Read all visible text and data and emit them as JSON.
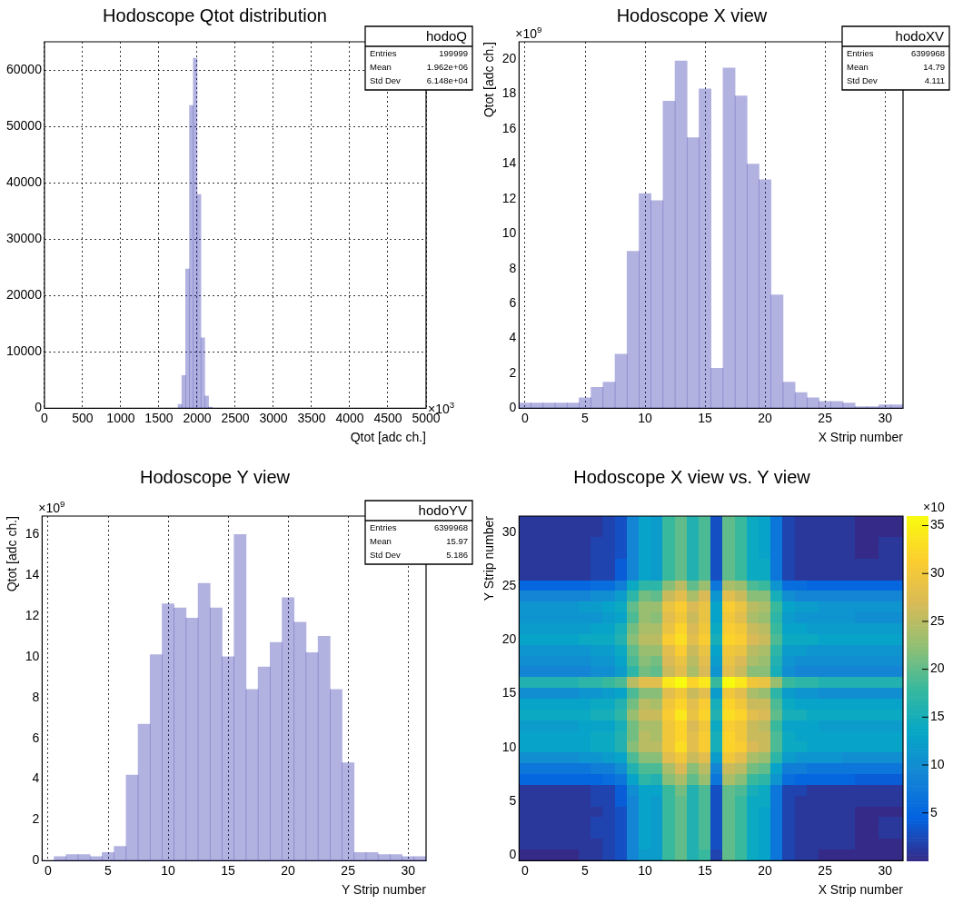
{
  "chart_data": [
    {
      "type": "histogram",
      "title": "Hodoscope Qtot distribution",
      "xlabel": "Qtot [adc ch.]",
      "bins": [
        1750,
        1800,
        1850,
        1900,
        1950,
        2000,
        2050,
        2100,
        2150,
        2200
      ],
      "values": [
        700,
        5800,
        24700,
        53700,
        62100,
        37900,
        12500,
        2200,
        200
      ],
      "color": "#000099",
      "xlim": [
        0,
        5000
      ],
      "xticks": [
        0,
        500,
        1000,
        1500,
        2000,
        2500,
        3000,
        3500,
        4000,
        4500,
        5000
      ],
      "ylim": [
        0,
        65000
      ],
      "yticks": [
        0,
        10000,
        20000,
        30000,
        40000,
        50000,
        60000
      ],
      "grid": true,
      "annotations": [
        "×10$^{3}$",
        "hodoQ",
        "Entries",
        "199999",
        "Mean",
        "1.962e+06",
        "Std Dev",
        "6.148e+04"
      ]
    },
    {
      "type": "histogram",
      "title": "Hodoscope X view",
      "xlabel": "X Strip number",
      "ylabel": "Qtot [adc ch.]",
      "bins": [
        -0.5,
        0.5,
        1.5,
        2.5,
        3.5,
        4.5,
        5.5,
        6.5,
        7.5,
        8.5,
        9.5,
        10.5,
        11.5,
        12.5,
        13.5,
        14.5,
        15.5,
        16.5,
        17.5,
        18.5,
        19.5,
        20.5,
        21.5,
        22.5,
        23.5,
        24.5,
        25.5,
        26.5,
        27.5,
        28.5,
        29.5,
        30.5,
        31.5
      ],
      "values": [
        0.3,
        0.3,
        0.3,
        0.3,
        0.3,
        0.6,
        1.2,
        1.5,
        3.1,
        9.0,
        12.3,
        11.9,
        17.6,
        19.9,
        15.5,
        18.3,
        2.3,
        19.5,
        17.9,
        14.0,
        13.1,
        6.5,
        1.5,
        0.9,
        0.6,
        0.4,
        0.4,
        0.3,
        0.1,
        0.1,
        0.2,
        0.2
      ],
      "color": "#000099",
      "xlim": [
        -0.5,
        31.5
      ],
      "xticks": [
        0,
        5,
        10,
        15,
        20,
        25,
        30
      ],
      "ylim": [
        0,
        21
      ],
      "yticks": [
        0,
        2,
        4,
        6,
        8,
        10,
        12,
        14,
        16,
        18,
        20
      ],
      "grid": "x",
      "annotations": [
        "×10$^{9}$",
        "hodoXV",
        "Entries",
        "6399968",
        "Mean",
        "14.79",
        "Std Dev",
        "4.111"
      ]
    },
    {
      "type": "histogram",
      "title": "Hodoscope Y view",
      "xlabel": "Y Strip number",
      "ylabel": "Qtot [adc ch.]",
      "bins": [
        -0.5,
        0.5,
        1.5,
        2.5,
        3.5,
        4.5,
        5.5,
        6.5,
        7.5,
        8.5,
        9.5,
        10.5,
        11.5,
        12.5,
        13.5,
        14.5,
        15.5,
        16.5,
        17.5,
        18.5,
        19.5,
        20.5,
        21.5,
        22.5,
        23.5,
        24.5,
        25.5,
        26.5,
        27.5,
        28.5,
        29.5,
        30.5,
        31.5
      ],
      "values": [
        0.0,
        0.2,
        0.3,
        0.3,
        0.2,
        0.4,
        0.7,
        4.2,
        6.7,
        10.1,
        12.6,
        12.4,
        11.9,
        13.6,
        12.4,
        10.0,
        16.0,
        8.4,
        9.5,
        10.7,
        12.9,
        11.7,
        10.2,
        11.0,
        8.4,
        4.8,
        0.4,
        0.4,
        0.3,
        0.3,
        0.2,
        0.2
      ],
      "color": "#000099",
      "xlim": [
        -0.5,
        31.5
      ],
      "xticks": [
        0,
        5,
        10,
        15,
        20,
        25,
        30
      ],
      "ylim": [
        0,
        16.9
      ],
      "yticks": [
        0,
        2,
        4,
        6,
        8,
        10,
        12,
        14,
        16
      ],
      "grid": "x",
      "annotations": [
        "×10$^{9}$",
        "hodoYV",
        "Entries",
        "6399968",
        "Mean",
        "15.97",
        "Std Dev",
        "5.186"
      ]
    },
    {
      "type": "heatmap",
      "title": "Hodoscope X view vs. Y view",
      "xlabel": "X Strip number",
      "ylabel": "Y Strip number",
      "categories": [
        "0",
        null,
        null,
        null,
        null,
        "5",
        null,
        null,
        null,
        null,
        "10",
        null,
        null,
        null,
        null,
        "15",
        null,
        null,
        null,
        null,
        "20",
        null,
        null,
        null,
        null,
        "25",
        null,
        null,
        null,
        null,
        "30",
        null
      ],
      "y_categories": [
        null,
        "30",
        null,
        null,
        null,
        null,
        "25",
        null,
        null,
        null,
        null,
        "20",
        null,
        null,
        null,
        null,
        "15",
        null,
        null,
        null,
        null,
        "10",
        null,
        null,
        null,
        null,
        "5",
        null,
        null,
        null,
        null,
        "0"
      ],
      "clim": [
        0,
        36
      ],
      "cticks": [
        5,
        10,
        15,
        20,
        25,
        30,
        35
      ],
      "cells": [
        [
          1,
          1,
          1,
          1,
          1,
          1,
          1,
          2,
          3,
          9,
          13,
          12,
          18,
          20,
          16,
          19,
          3,
          20,
          18,
          14,
          13,
          7,
          2,
          1,
          1,
          1,
          1,
          1,
          0,
          0,
          0,
          0
        ],
        [
          1,
          1,
          1,
          1,
          1,
          1,
          1,
          2,
          3,
          9,
          13,
          12,
          18,
          20,
          16,
          19,
          3,
          20,
          18,
          14,
          13,
          7,
          2,
          1,
          1,
          1,
          1,
          1,
          0,
          0,
          0,
          0
        ],
        [
          1,
          1,
          1,
          1,
          1,
          1,
          2,
          2,
          3,
          9,
          13,
          12,
          18,
          20,
          16,
          19,
          3,
          20,
          18,
          14,
          13,
          7,
          2,
          1,
          1,
          1,
          1,
          1,
          0,
          0,
          1,
          1
        ],
        [
          1,
          1,
          1,
          1,
          1,
          1,
          2,
          2,
          3,
          9,
          13,
          12,
          18,
          20,
          16,
          19,
          3,
          20,
          18,
          14,
          13,
          7,
          2,
          1,
          1,
          1,
          1,
          1,
          0,
          0,
          1,
          1
        ],
        [
          1,
          1,
          1,
          1,
          1,
          1,
          2,
          2,
          4,
          9,
          13,
          12,
          18,
          20,
          16,
          19,
          3,
          20,
          18,
          14,
          14,
          7,
          2,
          1,
          1,
          1,
          1,
          1,
          1,
          1,
          1,
          1
        ],
        [
          1,
          1,
          1,
          1,
          1,
          1,
          2,
          2,
          4,
          9,
          13,
          12,
          18,
          20,
          16,
          19,
          3,
          20,
          18,
          14,
          14,
          7,
          2,
          1,
          1,
          1,
          1,
          1,
          1,
          1,
          1,
          1
        ],
        [
          5,
          5,
          5,
          5,
          5,
          5,
          6,
          6,
          8,
          14,
          17,
          17,
          22,
          25,
          20,
          23,
          7,
          24,
          23,
          19,
          18,
          11,
          6,
          6,
          5,
          5,
          5,
          5,
          5,
          5,
          5,
          5
        ],
        [
          9,
          9,
          9,
          9,
          9,
          9,
          10,
          10,
          12,
          17,
          21,
          20,
          26,
          28,
          24,
          27,
          11,
          28,
          26,
          22,
          22,
          15,
          10,
          9,
          9,
          9,
          9,
          9,
          9,
          9,
          9,
          9
        ],
        [
          11,
          11,
          11,
          11,
          11,
          12,
          12,
          13,
          14,
          20,
          23,
          23,
          29,
          31,
          27,
          29,
          13,
          31,
          29,
          25,
          24,
          18,
          13,
          12,
          12,
          11,
          11,
          11,
          11,
          11,
          11,
          11
        ],
        [
          11,
          11,
          11,
          11,
          11,
          11,
          11,
          12,
          13,
          19,
          23,
          22,
          28,
          30,
          26,
          29,
          13,
          30,
          28,
          24,
          23,
          17,
          12,
          11,
          11,
          11,
          11,
          11,
          10,
          10,
          10,
          10
        ],
        [
          12,
          12,
          12,
          12,
          12,
          12,
          13,
          13,
          15,
          21,
          24,
          24,
          29,
          32,
          27,
          30,
          14,
          31,
          30,
          26,
          25,
          18,
          13,
          13,
          12,
          12,
          12,
          12,
          12,
          12,
          12,
          12
        ],
        [
          13,
          13,
          13,
          13,
          13,
          14,
          14,
          14,
          16,
          22,
          25,
          25,
          31,
          33,
          28,
          31,
          15,
          32,
          31,
          27,
          26,
          19,
          14,
          14,
          14,
          13,
          13,
          13,
          13,
          13,
          13,
          13
        ],
        [
          11,
          11,
          11,
          11,
          11,
          11,
          12,
          12,
          14,
          20,
          23,
          23,
          28,
          31,
          26,
          29,
          13,
          30,
          29,
          25,
          24,
          17,
          12,
          12,
          11,
          11,
          11,
          11,
          11,
          11,
          11,
          11
        ],
        [
          10,
          10,
          10,
          10,
          10,
          10,
          11,
          11,
          13,
          19,
          22,
          21,
          27,
          29,
          25,
          28,
          12,
          29,
          27,
          24,
          23,
          16,
          11,
          10,
          10,
          10,
          10,
          10,
          10,
          10,
          10,
          10
        ],
        [
          9,
          9,
          9,
          9,
          9,
          9,
          10,
          10,
          12,
          17,
          21,
          20,
          26,
          28,
          24,
          27,
          11,
          28,
          26,
          22,
          22,
          15,
          10,
          9,
          9,
          9,
          9,
          9,
          9,
          9,
          9,
          9
        ],
        [
          16,
          16,
          16,
          16,
          16,
          17,
          17,
          18,
          19,
          25,
          28,
          28,
          34,
          36,
          32,
          34,
          18,
          36,
          34,
          30,
          29,
          23,
          18,
          17,
          17,
          16,
          16,
          16,
          16,
          16,
          16,
          16
        ],
        [
          10,
          10,
          10,
          10,
          10,
          11,
          11,
          12,
          13,
          19,
          22,
          22,
          28,
          30,
          26,
          28,
          12,
          30,
          28,
          24,
          23,
          17,
          12,
          11,
          11,
          10,
          10,
          10,
          10,
          10,
          10,
          10
        ],
        [
          13,
          13,
          13,
          13,
          13,
          13,
          14,
          14,
          16,
          21,
          25,
          24,
          30,
          32,
          28,
          31,
          15,
          32,
          30,
          26,
          26,
          19,
          14,
          13,
          13,
          13,
          13,
          13,
          13,
          13,
          13,
          13
        ],
        [
          14,
          14,
          14,
          14,
          14,
          14,
          15,
          15,
          17,
          23,
          26,
          26,
          31,
          34,
          29,
          32,
          16,
          33,
          32,
          28,
          27,
          20,
          15,
          15,
          14,
          14,
          14,
          14,
          14,
          14,
          14,
          14
        ],
        [
          12,
          12,
          12,
          12,
          12,
          13,
          13,
          13,
          15,
          21,
          24,
          24,
          30,
          32,
          27,
          30,
          14,
          31,
          30,
          26,
          25,
          18,
          13,
          13,
          13,
          12,
          12,
          12,
          12,
          12,
          12,
          12
        ],
        [
          13,
          13,
          13,
          13,
          13,
          13,
          14,
          14,
          16,
          21,
          25,
          24,
          30,
          32,
          28,
          31,
          15,
          32,
          30,
          26,
          26,
          19,
          14,
          13,
          13,
          13,
          13,
          13,
          13,
          13,
          13,
          13
        ],
        [
          13,
          13,
          13,
          13,
          13,
          13,
          14,
          14,
          16,
          22,
          25,
          25,
          30,
          33,
          28,
          31,
          15,
          32,
          31,
          27,
          26,
          19,
          14,
          14,
          13,
          13,
          13,
          13,
          13,
          13,
          13,
          13
        ],
        [
          10,
          10,
          10,
          10,
          10,
          11,
          11,
          12,
          13,
          19,
          22,
          22,
          28,
          30,
          26,
          28,
          12,
          30,
          28,
          24,
          23,
          17,
          12,
          11,
          11,
          11,
          11,
          10,
          10,
          10,
          10,
          10
        ],
        [
          7,
          7,
          7,
          7,
          7,
          7,
          8,
          8,
          10,
          16,
          19,
          19,
          24,
          27,
          22,
          25,
          9,
          26,
          25,
          21,
          20,
          13,
          8,
          8,
          7,
          7,
          7,
          7,
          7,
          7,
          7,
          7
        ],
        [
          5,
          5,
          5,
          5,
          5,
          5,
          5,
          6,
          7,
          13,
          17,
          16,
          22,
          24,
          20,
          23,
          7,
          24,
          22,
          18,
          17,
          11,
          6,
          5,
          5,
          5,
          5,
          5,
          4,
          4,
          4,
          4
        ],
        [
          1,
          1,
          1,
          1,
          1,
          1,
          2,
          2,
          4,
          10,
          13,
          13,
          18,
          21,
          16,
          19,
          3,
          20,
          19,
          15,
          14,
          7,
          2,
          2,
          1,
          1,
          1,
          1,
          1,
          1,
          1,
          1
        ],
        [
          1,
          1,
          1,
          1,
          1,
          1,
          2,
          2,
          4,
          9,
          13,
          12,
          18,
          20,
          16,
          19,
          3,
          20,
          18,
          14,
          14,
          7,
          2,
          1,
          1,
          1,
          1,
          1,
          1,
          1,
          1,
          1
        ],
        [
          1,
          1,
          1,
          1,
          1,
          1,
          1,
          2,
          3,
          9,
          13,
          12,
          18,
          20,
          16,
          19,
          3,
          20,
          18,
          14,
          13,
          7,
          2,
          1,
          1,
          1,
          1,
          1,
          0,
          0,
          0,
          0
        ],
        [
          1,
          1,
          1,
          1,
          1,
          1,
          2,
          2,
          3,
          9,
          13,
          12,
          18,
          20,
          16,
          19,
          3,
          20,
          18,
          14,
          13,
          7,
          2,
          1,
          1,
          1,
          1,
          1,
          0,
          0,
          1,
          1
        ],
        [
          1,
          1,
          1,
          1,
          1,
          1,
          2,
          2,
          3,
          9,
          13,
          12,
          18,
          20,
          16,
          19,
          3,
          20,
          18,
          14,
          13,
          7,
          2,
          1,
          1,
          1,
          1,
          1,
          0,
          0,
          1,
          1
        ],
        [
          1,
          1,
          1,
          1,
          1,
          1,
          1,
          2,
          3,
          9,
          13,
          12,
          18,
          20,
          16,
          19,
          3,
          20,
          18,
          14,
          13,
          7,
          2,
          1,
          1,
          1,
          1,
          1,
          0,
          0,
          0,
          0
        ],
        [
          0,
          0,
          0,
          0,
          0,
          1,
          1,
          2,
          3,
          9,
          12,
          12,
          18,
          20,
          16,
          18,
          2,
          20,
          18,
          14,
          13,
          7,
          2,
          1,
          1,
          0,
          0,
          0,
          0,
          0,
          0,
          0
        ]
      ],
      "annotations": [
        "×10"
      ]
    }
  ]
}
